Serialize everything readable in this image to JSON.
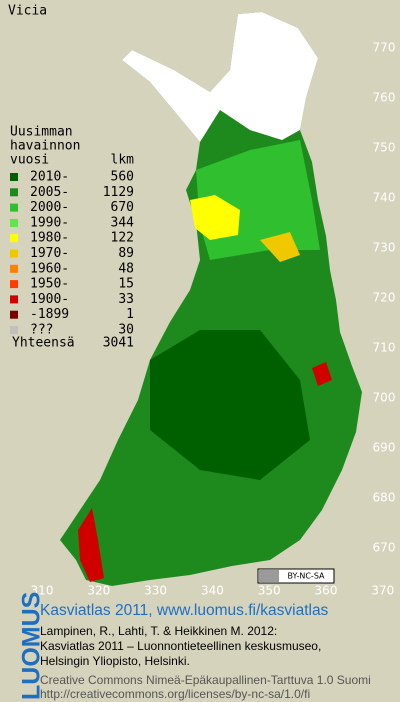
{
  "title": "Vicia",
  "legend": {
    "heading": [
      "Uusimman",
      "havainnon",
      "vuosi"
    ],
    "count_heading": "lkm",
    "rows": [
      {
        "label": "2010-",
        "count": 560,
        "color": "#006000"
      },
      {
        "label": "2005-",
        "count": 1129,
        "color": "#1b8a1b"
      },
      {
        "label": "2000-",
        "count": 670,
        "color": "#2fbf2f"
      },
      {
        "label": "1990-",
        "count": 344,
        "color": "#5fe64a"
      },
      {
        "label": "1980-",
        "count": 122,
        "color": "#ffff00"
      },
      {
        "label": "1970-",
        "count": 89,
        "color": "#f0c800"
      },
      {
        "label": "1960-",
        "count": 48,
        "color": "#ff8000"
      },
      {
        "label": "1950-",
        "count": 15,
        "color": "#ff3c00"
      },
      {
        "label": "1900-",
        "count": 33,
        "color": "#d00000"
      },
      {
        "label": "-1899",
        "count": 1,
        "color": "#780000"
      },
      {
        "label": "???",
        "count": 30,
        "color": "#c0c0c0"
      }
    ],
    "total_label": "Yhteensä",
    "total": 3041
  },
  "grid": {
    "xticks": [
      310,
      320,
      330,
      340,
      350,
      360,
      370
    ],
    "yticks": [
      670,
      680,
      690,
      700,
      710,
      720,
      730,
      740,
      750,
      760,
      770
    ]
  },
  "license_badge": "BY-NC-SA",
  "footer": {
    "logo": "LUOMUS",
    "headline": "Kasviatlas 2011, www.luomus.fi/kasviatlas",
    "citation": [
      "Lampinen, R., Lahti, T. & Heikkinen M. 2012:",
      "Kasviatlas 2011 – Luonnontieteellinen keskusmuseo,",
      "Helsingin Yliopisto, Helsinki."
    ],
    "license": [
      "Creative Commons Nimeä-Epäkaupallinen-Tarttuva 1.0 Suomi",
      "http://creativecommons.org/licenses/by-nc-sa/1.0/fi"
    ]
  }
}
